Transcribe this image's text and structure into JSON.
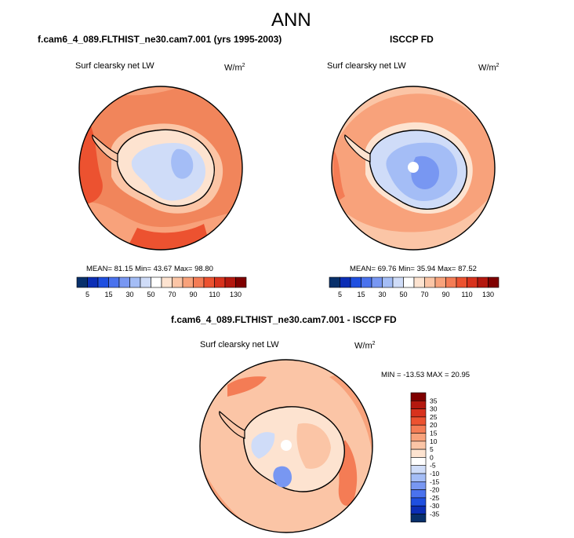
{
  "chart_data": {
    "type": "heatmap",
    "title": "ANN",
    "panels": [
      {
        "id": "model",
        "title": "f.cam6_4_089.FLTHIST_ne30.cam7.001 (yrs 1995-2003)",
        "variable": "Surf clearsky net LW",
        "units": "W/m",
        "units_exponent": "2",
        "stats": {
          "mean": "81.15",
          "min": "43.67",
          "max": "98.80"
        },
        "colorbar": {
          "orientation": "horizontal",
          "levels": [
            5,
            10,
            15,
            20,
            30,
            40,
            50,
            60,
            70,
            80,
            90,
            100,
            110,
            120,
            130
          ],
          "tick_labels": [
            "5",
            "15",
            "30",
            "50",
            "70",
            "90",
            "110",
            "130"
          ]
        }
      },
      {
        "id": "obs",
        "title": "ISCCP FD",
        "variable": "Surf clearsky net LW",
        "units": "W/m",
        "units_exponent": "2",
        "stats": {
          "mean": "69.76",
          "min": "35.94",
          "max": "87.52"
        },
        "colorbar": {
          "orientation": "horizontal",
          "levels": [
            5,
            10,
            15,
            20,
            30,
            40,
            50,
            60,
            70,
            80,
            90,
            100,
            110,
            120,
            130
          ],
          "tick_labels": [
            "5",
            "15",
            "30",
            "50",
            "70",
            "90",
            "110",
            "130"
          ]
        }
      },
      {
        "id": "diff",
        "title": "f.cam6_4_089.FLTHIST_ne30.cam7.001 - ISCCP FD",
        "variable": "Surf clearsky net LW",
        "units": "W/m",
        "units_exponent": "2",
        "stats": {
          "min": "-13.53",
          "max": "20.95"
        },
        "colorbar": {
          "orientation": "vertical",
          "levels": [
            -35,
            -30,
            -25,
            -20,
            -15,
            -10,
            -5,
            0,
            5,
            10,
            15,
            20,
            25,
            30,
            35
          ],
          "tick_labels": [
            "35",
            "30",
            "25",
            "20",
            "15",
            "10",
            "5",
            "0",
            "-5",
            "-10",
            "-15",
            "-20",
            "-25",
            "-30",
            "-35"
          ]
        }
      }
    ],
    "colormap": [
      "#08306b",
      "#0c2eb5",
      "#1f4fe0",
      "#4a72ee",
      "#7897f2",
      "#a4bdf6",
      "#cfdcf8",
      "#ffffff",
      "#fde3d0",
      "#fbc5a6",
      "#f8a27b",
      "#f47c55",
      "#ec5230",
      "#d8321d",
      "#b4180f",
      "#7f0000"
    ],
    "labels": {
      "mean": "MEAN=",
      "min": "Min=",
      "max": "Max=",
      "min_diff": "MIN =",
      "max_diff": "MAX ="
    }
  }
}
